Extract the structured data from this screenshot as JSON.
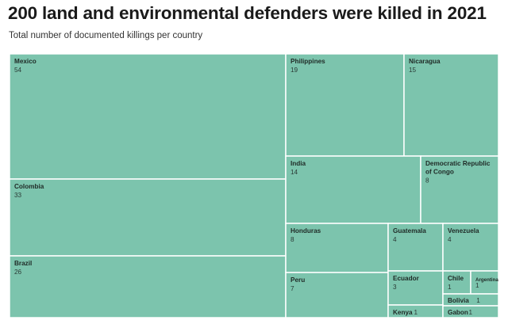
{
  "header": {
    "title": "200 land and environmental defenders were killed in 2021",
    "subtitle": "Total number of documented killings per country"
  },
  "chart_data": {
    "type": "treemap",
    "title": "200 land and environmental defenders were killed in 2021",
    "subtitle": "Total number of documented killings per country",
    "fill_color": "#7cc4ad",
    "items": [
      {
        "label": "Mexico",
        "value": 54
      },
      {
        "label": "Colombia",
        "value": 33
      },
      {
        "label": "Brazil",
        "value": 26
      },
      {
        "label": "Philippines",
        "value": 19
      },
      {
        "label": "Nicaragua",
        "value": 15
      },
      {
        "label": "India",
        "value": 14
      },
      {
        "label": "Democratic Republic of Congo",
        "value": 8
      },
      {
        "label": "Honduras",
        "value": 8
      },
      {
        "label": "Peru",
        "value": 7
      },
      {
        "label": "Guatemala",
        "value": 4
      },
      {
        "label": "Venezuela",
        "value": 4
      },
      {
        "label": "Ecuador",
        "value": 3
      },
      {
        "label": "Chile",
        "value": 1
      },
      {
        "label": "Argentina",
        "value": 1
      },
      {
        "label": "Bolivia",
        "value": 1
      },
      {
        "label": "Kenya",
        "value": 1
      },
      {
        "label": "Gabon",
        "value": 1
      }
    ]
  }
}
